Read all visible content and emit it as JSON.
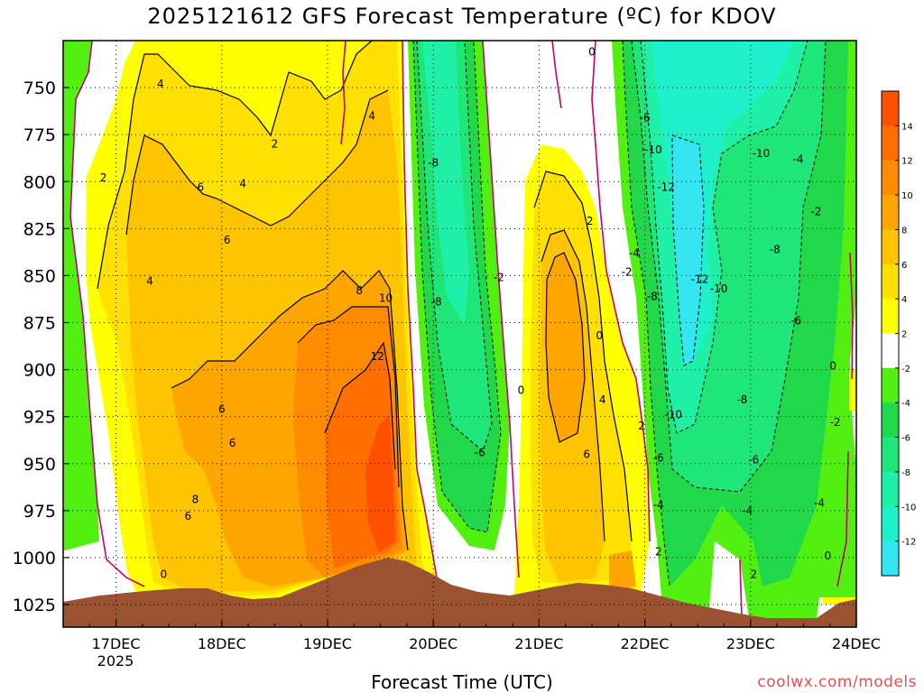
{
  "header": {
    "title": "2025121612 GFS Forecast Temperature (ºC) for KDOV"
  },
  "footer": {
    "xlabel": "Forecast Time (UTC)",
    "credit": "coolwx.com/models"
  },
  "colors": {
    "t_le_-12": "#33e6f2",
    "t_-12_-10": "#1ff0cc",
    "t_-10_-8": "#1ef0a8",
    "t_-8_-6": "#1ee678",
    "t_-6_-4": "#20d84a",
    "t_-4_-2": "#52f010",
    "t_-2_2": "#ffffff",
    "t_2_4": "#ffff00",
    "t_4_6": "#ffe000",
    "t_6_8": "#ffc400",
    "t_8_10": "#ffa500",
    "t_10_12": "#ff8c00",
    "t_12_14": "#ff6f00",
    "t_ge_14": "#ff5000",
    "terrain": "#9a5230",
    "zero_line": "#c8006e"
  },
  "chart_data": {
    "type": "heatmap",
    "title": "2025121612 GFS Forecast Temperature (ºC) for KDOV",
    "xlabel": "Forecast Time (UTC)",
    "ylabel": "",
    "x_ticks": [
      "17DEC",
      "18DEC",
      "19DEC",
      "20DEC",
      "21DEC",
      "22DEC",
      "23DEC",
      "24DEC"
    ],
    "x_tick_year": "2025",
    "x_range_days_dec": [
      16.5,
      24.0
    ],
    "y_ticks": [
      750,
      775,
      800,
      825,
      850,
      875,
      900,
      925,
      950,
      975,
      1000,
      1025
    ],
    "y_range": [
      725,
      1037
    ],
    "colorbar_ticks": [
      14,
      12,
      10,
      8,
      6,
      4,
      2,
      -2,
      -4,
      -6,
      -8,
      -10,
      -12
    ],
    "contour_labels": [
      {
        "t": 17.42,
        "p": 748,
        "label": "4"
      },
      {
        "t": 18.5,
        "p": 780,
        "label": "2"
      },
      {
        "t": 19.42,
        "p": 765,
        "label": "4"
      },
      {
        "t": 16.88,
        "p": 798,
        "label": "2"
      },
      {
        "t": 17.8,
        "p": 803,
        "label": "6"
      },
      {
        "t": 18.2,
        "p": 801,
        "label": "4"
      },
      {
        "t": 18.05,
        "p": 831,
        "label": "6"
      },
      {
        "t": 17.32,
        "p": 853,
        "label": "4"
      },
      {
        "t": 19.3,
        "p": 858,
        "label": "8"
      },
      {
        "t": 19.55,
        "p": 862,
        "label": "10"
      },
      {
        "t": 19.47,
        "p": 893,
        "label": "12"
      },
      {
        "t": 18.0,
        "p": 921,
        "label": "6"
      },
      {
        "t": 18.1,
        "p": 939,
        "label": "6"
      },
      {
        "t": 17.75,
        "p": 969,
        "label": "8"
      },
      {
        "t": 17.68,
        "p": 978,
        "label": "6"
      },
      {
        "t": 17.45,
        "p": 1009,
        "label": "0"
      },
      {
        "t": 20.0,
        "p": 790,
        "label": "-8"
      },
      {
        "t": 20.03,
        "p": 864,
        "label": "-8"
      },
      {
        "t": 20.62,
        "p": 851,
        "label": "-2"
      },
      {
        "t": 20.44,
        "p": 944,
        "label": "-6"
      },
      {
        "t": 20.83,
        "p": 911,
        "label": "0"
      },
      {
        "t": 21.48,
        "p": 821,
        "label": "2"
      },
      {
        "t": 21.5,
        "p": 731,
        "label": "0"
      },
      {
        "t": 21.57,
        "p": 882,
        "label": "0"
      },
      {
        "t": 21.6,
        "p": 916,
        "label": "4"
      },
      {
        "t": 21.45,
        "p": 945,
        "label": "6"
      },
      {
        "t": 21.97,
        "p": 930,
        "label": "2"
      },
      {
        "t": 21.9,
        "p": 838,
        "label": "-4"
      },
      {
        "t": 21.83,
        "p": 848,
        "label": "-2"
      },
      {
        "t": 22.0,
        "p": 766,
        "label": "-6"
      },
      {
        "t": 22.08,
        "p": 783,
        "label": "-10"
      },
      {
        "t": 22.2,
        "p": 803,
        "label": "-12"
      },
      {
        "t": 22.07,
        "p": 861,
        "label": "-8"
      },
      {
        "t": 22.52,
        "p": 852,
        "label": "-12"
      },
      {
        "t": 22.7,
        "p": 857,
        "label": "-10"
      },
      {
        "t": 23.1,
        "p": 785,
        "label": "-10"
      },
      {
        "t": 23.45,
        "p": 788,
        "label": "-4"
      },
      {
        "t": 23.62,
        "p": 816,
        "label": "-2"
      },
      {
        "t": 23.23,
        "p": 836,
        "label": "-8"
      },
      {
        "t": 23.43,
        "p": 874,
        "label": "-6"
      },
      {
        "t": 23.78,
        "p": 898,
        "label": "0"
      },
      {
        "t": 22.27,
        "p": 924,
        "label": "-10"
      },
      {
        "t": 22.92,
        "p": 916,
        "label": "-8"
      },
      {
        "t": 23.8,
        "p": 928,
        "label": "-2"
      },
      {
        "t": 22.13,
        "p": 947,
        "label": "-6"
      },
      {
        "t": 23.03,
        "p": 948,
        "label": "-6"
      },
      {
        "t": 22.13,
        "p": 972,
        "label": "-4"
      },
      {
        "t": 22.97,
        "p": 975,
        "label": "-4"
      },
      {
        "t": 23.65,
        "p": 971,
        "label": "-4"
      },
      {
        "t": 22.13,
        "p": 997,
        "label": "2"
      },
      {
        "t": 23.03,
        "p": 1009,
        "label": "2"
      },
      {
        "t": 23.73,
        "p": 999,
        "label": "0"
      }
    ],
    "grid": true
  }
}
